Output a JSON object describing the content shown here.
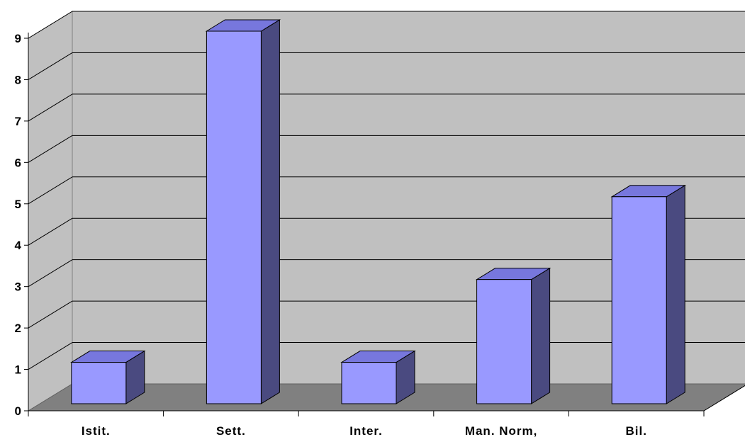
{
  "chart_data": {
    "type": "bar",
    "categories": [
      "Istit.",
      "Sett.",
      "Inter.",
      "Man. Norm,",
      "Bil."
    ],
    "values": [
      1,
      9,
      1,
      3,
      5
    ],
    "title": "",
    "xlabel": "",
    "ylabel": "",
    "ylim": [
      0,
      9
    ],
    "yticks": [
      "0",
      "1",
      "2",
      "3",
      "4",
      "5",
      "6",
      "7",
      "8",
      "9"
    ],
    "grid": true,
    "legend": "none",
    "style": "3d-column",
    "colors": {
      "bar_front": "#9999ff",
      "bar_top": "#7777dd",
      "bar_side": "#4a4a80",
      "back_wall": "#c0c0c0",
      "floor": "#808080",
      "gridline": "#000000"
    }
  }
}
